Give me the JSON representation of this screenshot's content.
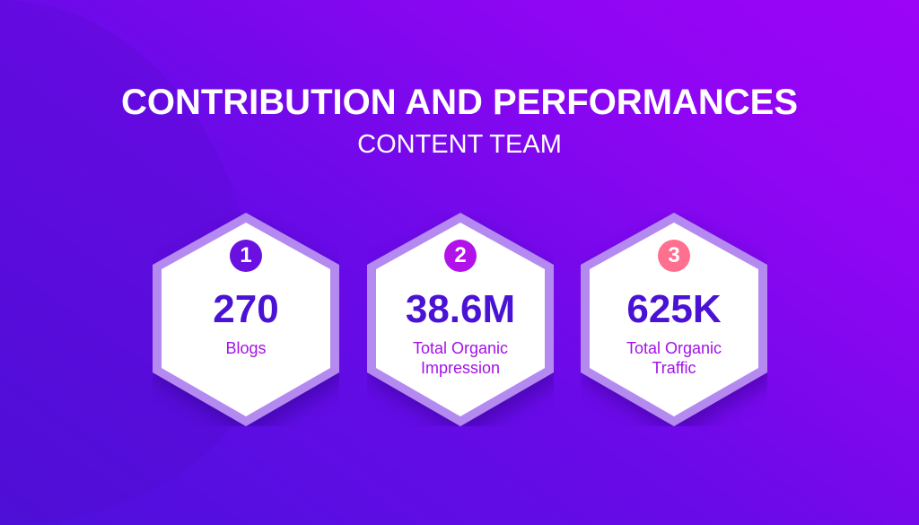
{
  "header": {
    "title": "CONTRIBUTION AND PERFORMANCES",
    "subtitle": "CONTENT TEAM"
  },
  "stats": [
    {
      "badge": "1",
      "value": "270",
      "label": "Blogs",
      "badge_color": "#6a10e0"
    },
    {
      "badge": "2",
      "value": "38.6M",
      "label": "Total Organic\nImpression",
      "badge_color": "#b212ea"
    },
    {
      "badge": "3",
      "value": "625K",
      "label": "Total Organic\nTraffic",
      "badge_color": "#ff6f90"
    }
  ],
  "colors": {
    "value": "#4a12d4",
    "label": "#a312e6",
    "hex_border": "#b48af0"
  }
}
